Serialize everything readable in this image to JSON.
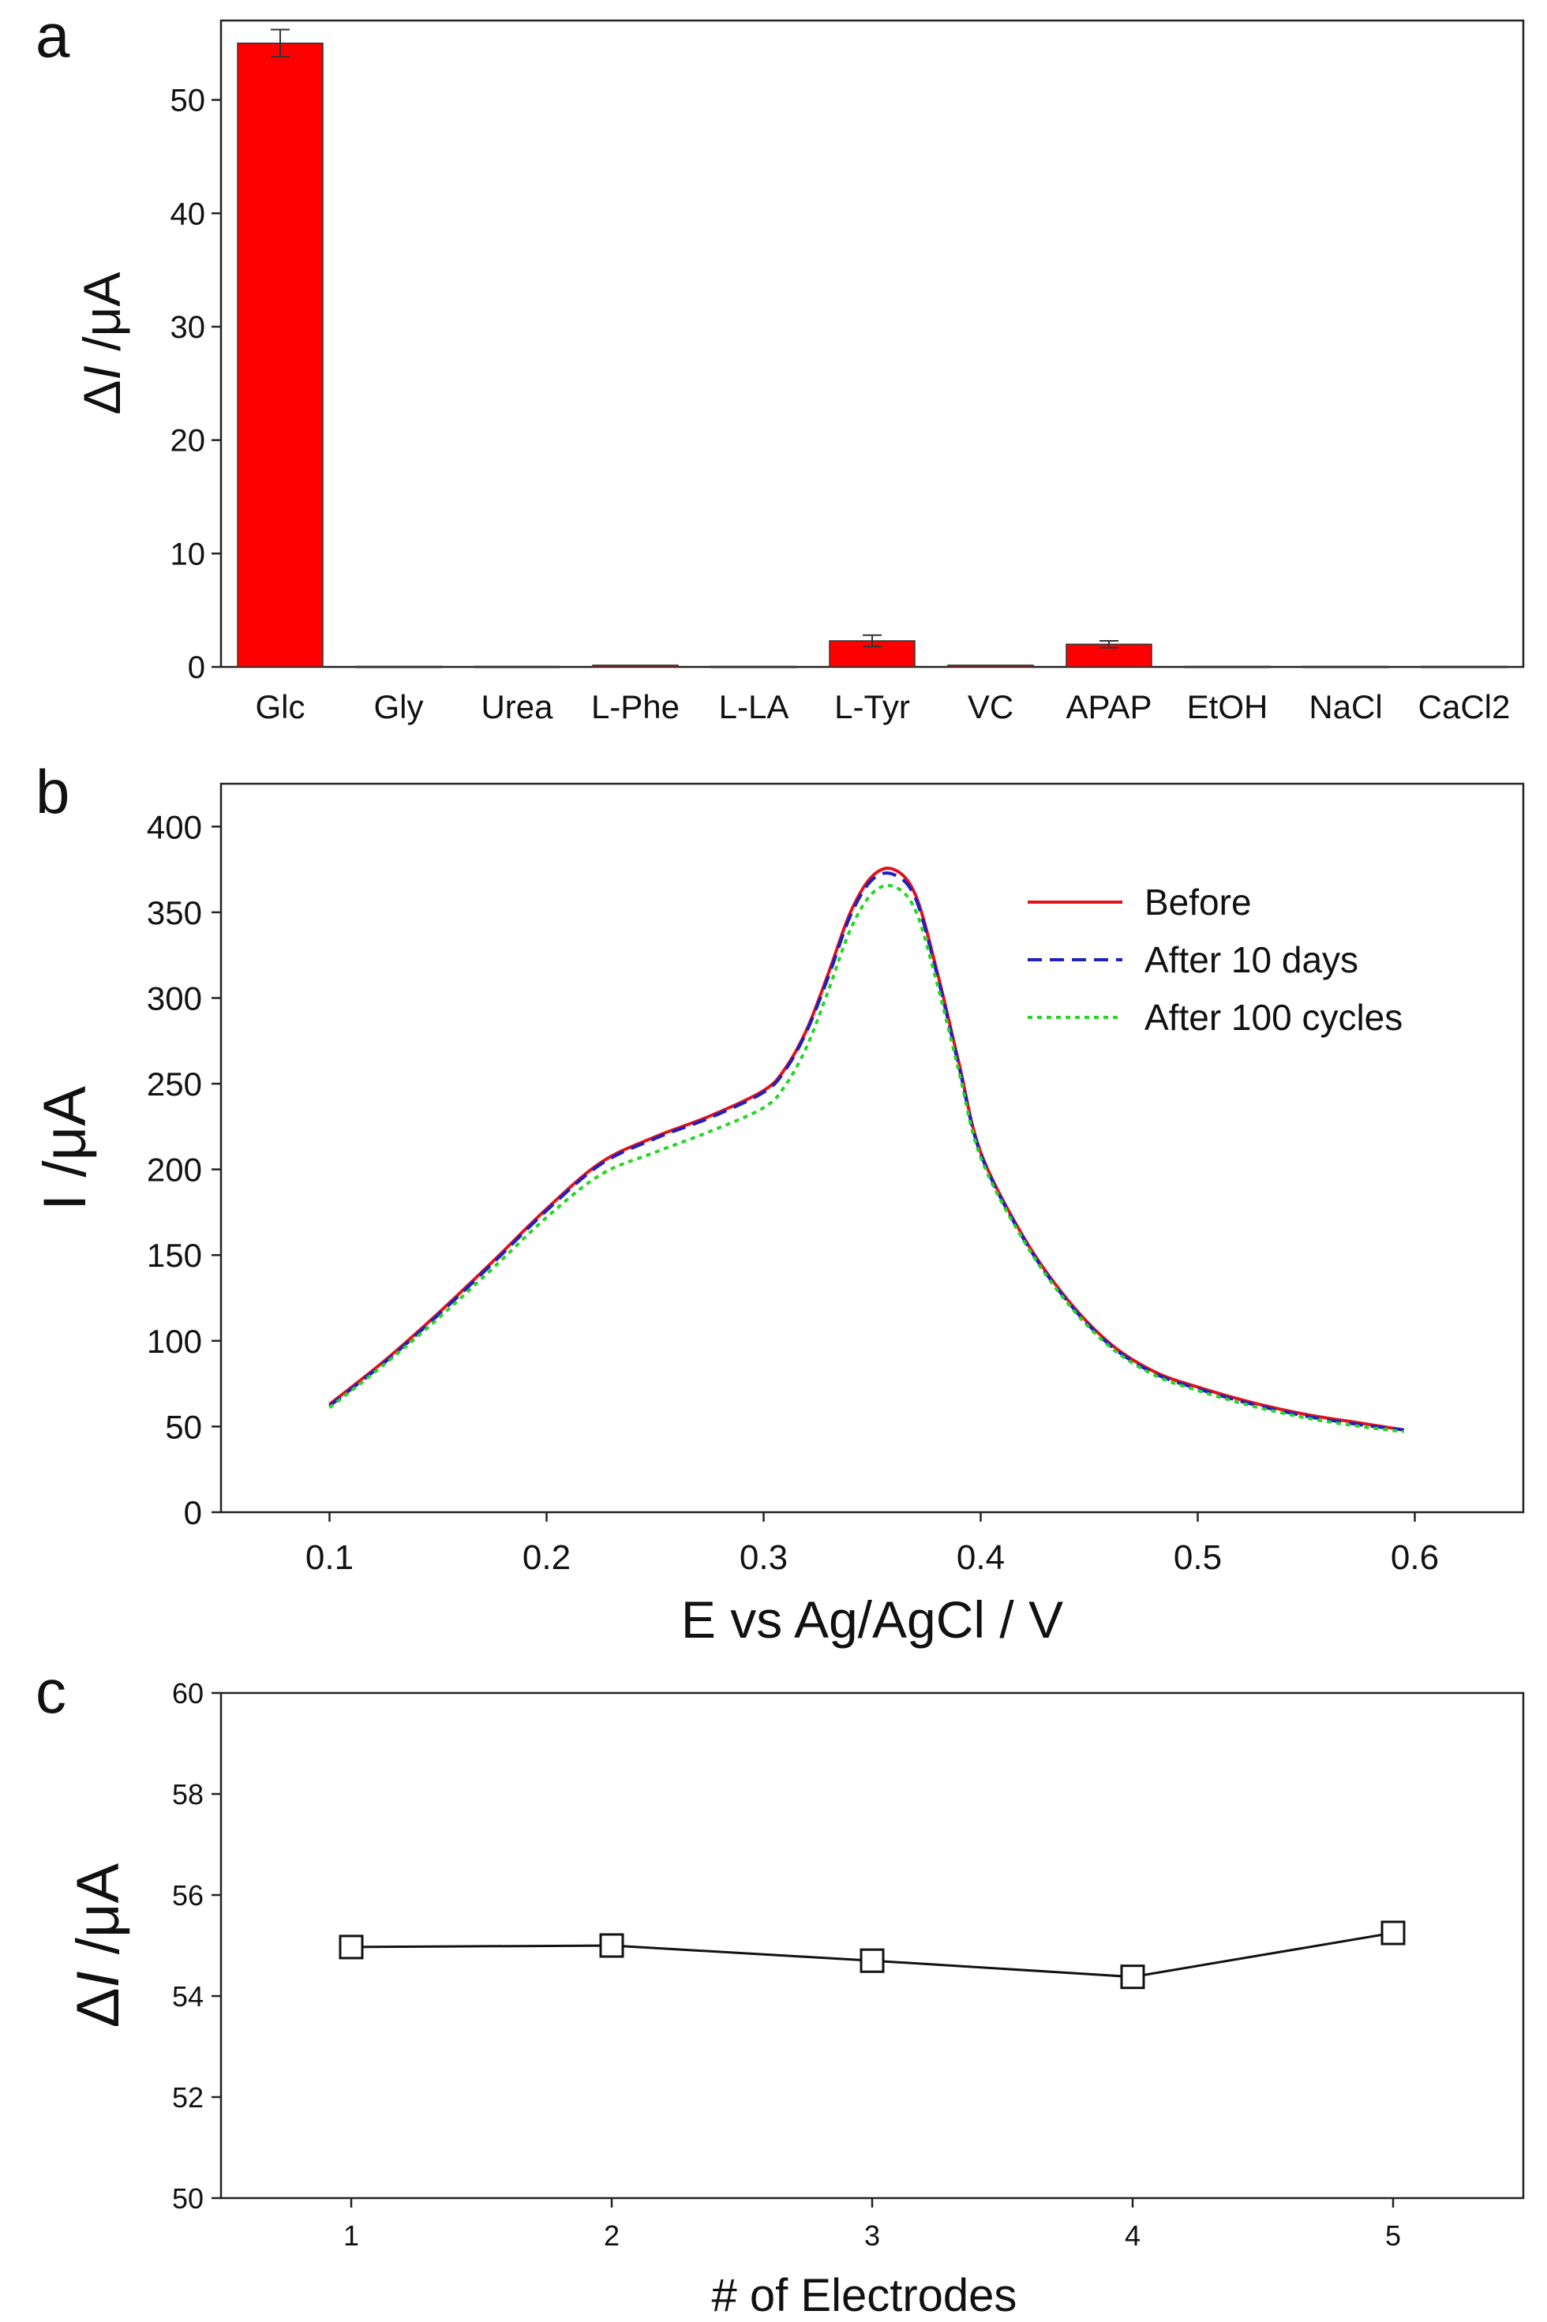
{
  "chart_data": [
    {
      "panel": "a",
      "type": "bar",
      "ylabel_prefix": "Δ",
      "ylabel_var": "I",
      "ylabel_unit": " /μA",
      "ylim": [
        0,
        57
      ],
      "yticks": [
        0,
        10,
        20,
        30,
        40,
        50
      ],
      "categories": [
        "Glc",
        "Gly",
        "Urea",
        "L-Phe",
        "L-LA",
        "L-Tyr",
        "VC",
        "APAP",
        "EtOH",
        "NaCl",
        "CaCl2"
      ],
      "values": [
        55.0,
        0.05,
        0.05,
        0.15,
        0.05,
        2.3,
        0.15,
        2.0,
        0.05,
        0.05,
        0.05
      ],
      "errors": [
        1.2,
        0,
        0,
        0,
        0,
        0.5,
        0,
        0.3,
        0,
        0,
        0
      ],
      "bar_color": "#ff0000"
    },
    {
      "panel": "b",
      "type": "line",
      "xlabel": "E vs Ag/AgCl / V",
      "ylabel": "I /μA",
      "xlim": [
        0.05,
        0.65
      ],
      "ylim": [
        0,
        425
      ],
      "xticks": [
        0.1,
        0.2,
        0.3,
        0.4,
        0.5,
        0.6
      ],
      "xtick_labels": [
        "0.1",
        "0.2",
        "0.3",
        "0.4",
        "0.5",
        "0.6"
      ],
      "yticks": [
        0,
        50,
        100,
        150,
        200,
        250,
        300,
        350,
        400
      ],
      "legend_position": "top-right",
      "x": [
        0.1,
        0.125,
        0.15,
        0.175,
        0.2,
        0.225,
        0.25,
        0.275,
        0.3,
        0.31,
        0.32,
        0.33,
        0.34,
        0.35,
        0.36,
        0.37,
        0.38,
        0.39,
        0.4,
        0.42,
        0.44,
        0.46,
        0.48,
        0.5,
        0.525,
        0.55,
        0.575,
        0.595
      ],
      "series": [
        {
          "name": "Before",
          "color": "#e0131b",
          "dash": "",
          "values": [
            63,
            88,
            116,
            146,
            177,
            204,
            219,
            231,
            246,
            259,
            282,
            315,
            350,
            371,
            375,
            360,
            315,
            262,
            210,
            160,
            124,
            98,
            82,
            73,
            64,
            57,
            52,
            48
          ]
        },
        {
          "name": "After 10 days",
          "color": "#1f1fc0",
          "dash": "18,10",
          "values": [
            62,
            87,
            115,
            145,
            176,
            203,
            218,
            230,
            245,
            258,
            281,
            313,
            348,
            369,
            372,
            358,
            313,
            260,
            209,
            159,
            123,
            97,
            81,
            72,
            63,
            56,
            51,
            48
          ]
        },
        {
          "name": "After 100 cycles",
          "color": "#26d626",
          "dash": "6,6",
          "values": [
            61,
            86,
            113,
            142,
            172,
            197,
            210,
            222,
            236,
            249,
            272,
            305,
            340,
            361,
            365,
            351,
            308,
            257,
            207,
            158,
            122,
            96,
            80,
            71,
            62,
            55,
            50,
            47
          ]
        }
      ]
    },
    {
      "panel": "c",
      "type": "scatter",
      "xlabel": "# of Electrodes",
      "ylabel_prefix": "Δ",
      "ylabel_var": "I",
      "ylabel_unit": " /μA",
      "xlim": [
        0.5,
        5.5
      ],
      "ylim": [
        50,
        60
      ],
      "xticks": [
        1,
        2,
        3,
        4,
        5
      ],
      "yticks": [
        50,
        52,
        54,
        56,
        58,
        60
      ],
      "x": [
        1,
        2,
        3,
        4,
        5
      ],
      "values": [
        54.97,
        55.0,
        54.7,
        54.38,
        55.25
      ]
    }
  ]
}
